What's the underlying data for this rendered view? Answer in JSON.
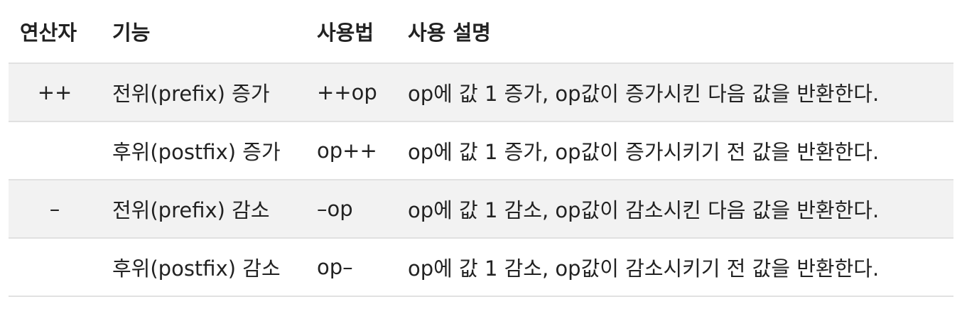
{
  "headers": [
    "연산자",
    "기능",
    "사용법",
    "사용 설명"
  ],
  "rows": [
    {
      "operator": "++",
      "function": "전위(prefix) 증가",
      "usage": "++op",
      "description": "op에 값 1 증가, op값이 증가시킨 다음 값을 반환한다."
    },
    {
      "operator": "",
      "function": "후위(postfix) 증가",
      "usage": "op++",
      "description": "op에 값 1 증가, op값이 증가시키기 전 값을 반환한다."
    },
    {
      "operator": "–",
      "function": "전위(prefix) 감소",
      "usage": "–op",
      "description": "op에 값 1 감소, op값이 감소시킨 다음 값을 반환한다."
    },
    {
      "operator": "",
      "function": "후위(postfix) 감소",
      "usage": "op–",
      "description": "op에 값 1 감소, op값이 감소시키기 전 값을 반환한다."
    }
  ]
}
